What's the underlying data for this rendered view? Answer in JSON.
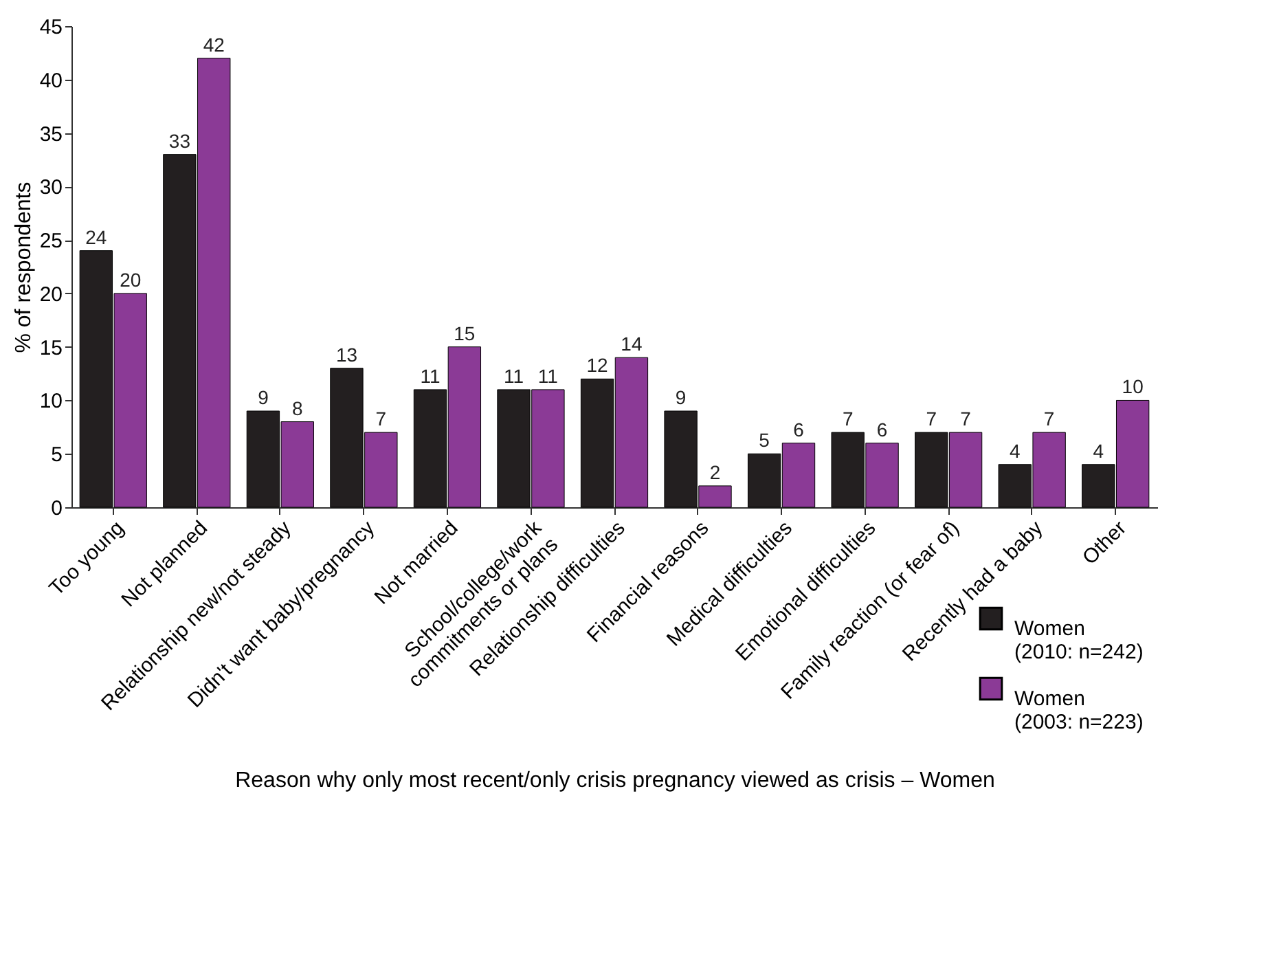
{
  "chart_data": {
    "type": "bar",
    "xlabel": "Reason why only most recent/only crisis pregnancy viewed as crisis – Women",
    "ylabel": "% of respondents",
    "categories": [
      "Too young",
      "Not planned",
      "Relationship new/not steady",
      "Didn't want baby/pregnancy",
      "Not married",
      "School/college/work commitments or plans",
      "Relationship difficulties",
      "Financial reasons",
      "Medical difficulties",
      "Emotional difficulties",
      "Family reaction (or fear of)",
      "Recently had a baby",
      "Other"
    ],
    "series": [
      {
        "name": "Women (2010: n=242)",
        "color": "#231f20",
        "values": [
          24,
          33,
          9,
          13,
          11,
          11,
          12,
          9,
          5,
          7,
          7,
          4,
          4
        ]
      },
      {
        "name": "Women (2003: n=223)",
        "color": "#8b3a96",
        "values": [
          20,
          42,
          8,
          7,
          15,
          11,
          14,
          2,
          6,
          6,
          7,
          7,
          10
        ]
      }
    ],
    "ylim": [
      0,
      45
    ],
    "yticks": [
      0,
      5,
      10,
      15,
      20,
      25,
      30,
      35,
      40,
      45
    ],
    "data_labels": true,
    "legend": "bottom right"
  }
}
